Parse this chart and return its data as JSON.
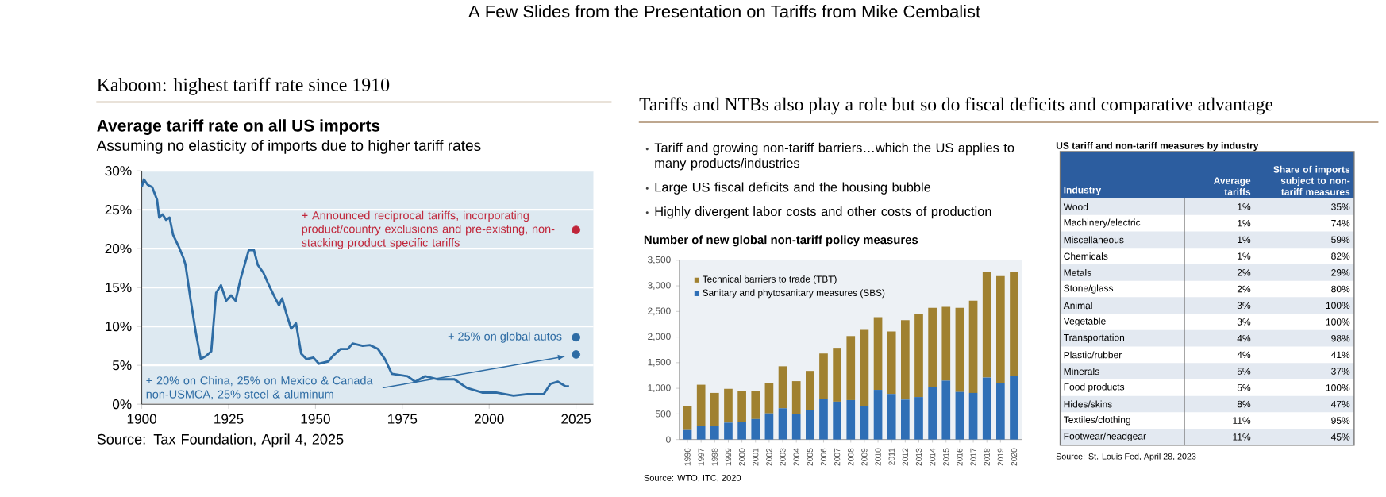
{
  "chart_data": [
    {
      "type": "line",
      "title": "Average tariff rate on all US imports",
      "subtitle": "Assuming no elasticity of imports due to higher tariff rates",
      "series": [
        {
          "color": "#2e6ca4",
          "x": [
            1900,
            1900.6,
            1901.7,
            1903,
            1904.4,
            1905,
            1906,
            1907,
            1908,
            1909,
            1910.8,
            1912,
            1912.6,
            1914,
            1915.6,
            1917,
            1918.5,
            1920,
            1921.4,
            1922.8,
            1924.3,
            1925.7,
            1927,
            1928.5,
            1930.8,
            1932.3,
            1933.4,
            1935,
            1936.6,
            1938,
            1939.5,
            1940.4,
            1941.6,
            1943,
            1944.4,
            1945.9,
            1947.4,
            1949.4,
            1951,
            1953.7,
            1955,
            1957.2,
            1959.3,
            1960.7,
            1963.6,
            1965.7,
            1968,
            1970,
            1972,
            1976.5,
            1978.7,
            1981.6,
            1985.3,
            1990,
            1993.6,
            1998,
            2002,
            2007,
            2011,
            2015.7,
            2017.6,
            2019.8,
            2022,
            2023
          ],
          "values": [
            27.9,
            28.9,
            28.2,
            27.9,
            26.3,
            24.0,
            24.4,
            23.7,
            24.0,
            21.8,
            20.1,
            18.8,
            17.9,
            13.6,
            9.1,
            5.8,
            6.2,
            6.8,
            14.3,
            15.3,
            13.3,
            14.0,
            13.3,
            16.2,
            19.8,
            19.8,
            17.9,
            16.9,
            15.3,
            14.0,
            12.7,
            13.6,
            11.7,
            9.7,
            10.4,
            6.5,
            5.8,
            6.0,
            5.2,
            5.5,
            6.2,
            7.1,
            7.1,
            7.8,
            7.5,
            7.6,
            7.1,
            5.8,
            3.9,
            3.6,
            2.9,
            3.6,
            3.2,
            3.2,
            2.1,
            1.5,
            1.5,
            1.1,
            1.3,
            1.3,
            2.6,
            2.9,
            2.3,
            2.3
          ]
        },
        {
          "type": "scatter",
          "x": [
            2025,
            2025,
            2025
          ],
          "values": [
            22.4,
            8.6,
            6.4
          ],
          "colors": [
            "#c0263a",
            "#2e6ca4",
            "#2e6ca4"
          ]
        }
      ],
      "xlim": [
        1900,
        2030
      ],
      "ylim": [
        0,
        30
      ],
      "xticks": [
        1900,
        1925,
        1950,
        1975,
        2000,
        2025
      ],
      "yticks": [
        {
          "value": 0,
          "label": "0%"
        },
        {
          "value": 5,
          "label": "5%"
        },
        {
          "value": 10,
          "label": "10%"
        },
        {
          "value": 15,
          "label": "15%"
        },
        {
          "value": 20,
          "label": "20%"
        },
        {
          "value": 25,
          "label": "25%"
        },
        {
          "value": 30,
          "label": "30%"
        }
      ],
      "grid": "y",
      "annotations": [
        "A Few Slides from the Presentation on Tariffs from Mike Cembalist",
        "Kaboom: highest tariff rate since 1910",
        {
          "text": "+ Announced reciprocal tariffs, incorporating product/country exclusions and pre-existing, non-stacking product specific tariffs",
          "x": 2025,
          "y": 22.4
        },
        {
          "text": "+ 25% on global autos",
          "x": 2025,
          "y": 8.6
        },
        "+ 20% on China, 25% on Mexico & Canada non-USMCA, 25% steel & aluminum",
        "Source: Tax Foundation, April 4, 2025"
      ]
    },
    {
      "type": "bar",
      "stacked": true,
      "title": "Number of new global non-tariff policy measures",
      "categories": [
        "1996",
        "1997",
        "1998",
        "1999",
        "2000",
        "2001",
        "2002",
        "2003",
        "2004",
        "2005",
        "2006",
        "2007",
        "2008",
        "2009",
        "2010",
        "2011",
        "2012",
        "2013",
        "2014",
        "2015",
        "2016",
        "2017",
        "2018",
        "2019",
        "2020"
      ],
      "series": [
        {
          "name": "Sanitary and phytosanitary measures (SBS)",
          "color": "#2f6fb6",
          "values": [
            200,
            270,
            270,
            330,
            350,
            400,
            510,
            610,
            500,
            570,
            800,
            740,
            770,
            660,
            970,
            890,
            780,
            830,
            1030,
            1150,
            930,
            910,
            1210,
            1100,
            1240
          ]
        },
        {
          "name": "Technical barriers to trade (TBT)",
          "color": "#a08130",
          "values": [
            460,
            800,
            640,
            660,
            590,
            540,
            590,
            820,
            640,
            770,
            880,
            1050,
            1250,
            1480,
            1420,
            1220,
            1550,
            1620,
            1540,
            1440,
            1640,
            1800,
            2070,
            2090,
            2040
          ]
        }
      ],
      "ylim": [
        0,
        3500
      ],
      "yticks": [
        0,
        500,
        {
          "value": 1000,
          "label": "1,000"
        },
        {
          "value": 1500,
          "label": "1,500"
        },
        {
          "value": 2000,
          "label": "2,000"
        },
        {
          "value": 2500,
          "label": "2,500"
        },
        {
          "value": 3000,
          "label": "3,000"
        },
        {
          "value": 3500,
          "label": "3,500"
        }
      ],
      "legend": "top left",
      "annotations": [
        "Tariffs and NTBs also play a role but so do fiscal deficits and comparative advantage",
        "Tariff and growing non-tariff barriers…which the US applies to many products/industries",
        "Large US fiscal deficits and the housing bubble",
        "Highly divergent labor costs and other costs of production",
        "Source: WTO, ITC, 2020"
      ]
    },
    {
      "type": "other",
      "title": "US tariff and non-tariff measures by industry",
      "xlabel": "Industry",
      "categories": [
        "Wood",
        "Machinery/electric",
        "Miscellaneous",
        "Chemicals",
        "Metals",
        "Stone/glass",
        "Animal",
        "Vegetable",
        "Transportation",
        "Plastic/rubber",
        "Minerals",
        "Food products",
        "Hides/skins",
        "Textiles/clothing",
        "Footwear/headgear"
      ],
      "series": [
        {
          "name": "Average tariffs",
          "values": [
            1,
            1,
            1,
            1,
            2,
            2,
            3,
            3,
            4,
            4,
            5,
            5,
            8,
            11,
            11
          ],
          "value_labels": [
            "1%",
            "1%",
            "1%",
            "1%",
            "2%",
            "2%",
            "3%",
            "3%",
            "4%",
            "4%",
            "5%",
            "5%",
            "8%",
            "11%",
            "11%"
          ]
        },
        {
          "name": "Share of imports subject to non-tariff measures",
          "values": [
            35,
            74,
            59,
            82,
            29,
            80,
            100,
            100,
            98,
            41,
            37,
            100,
            47,
            95,
            45
          ],
          "value_labels": [
            "35%",
            "74%",
            "59%",
            "82%",
            "29%",
            "80%",
            "100%",
            "100%",
            "98%",
            "41%",
            "37%",
            "100%",
            "47%",
            "95%",
            "45%"
          ]
        }
      ],
      "annotations": [
        "Source: St. Louis Fed, April 28, 2023"
      ]
    }
  ]
}
